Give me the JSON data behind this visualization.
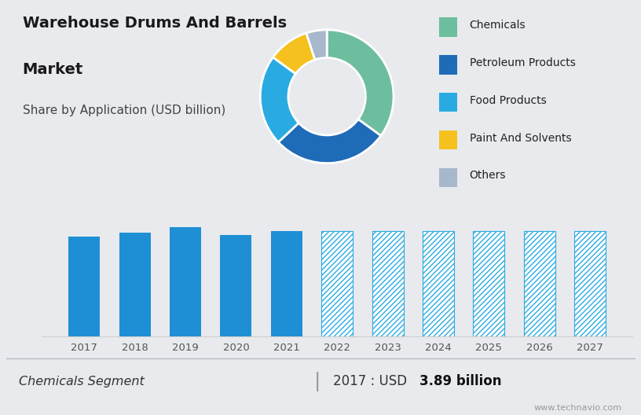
{
  "title_line1": "Warehouse Drums And Barrels",
  "title_line2": "Market",
  "subtitle": "Share by Application (USD billion)",
  "top_bg_color": "#c5d3e0",
  "bottom_bg_color": "#e8eaed",
  "pie_labels": [
    "Chemicals",
    "Petroleum Products",
    "Food Products",
    "Paint And Solvents",
    "Others"
  ],
  "pie_values": [
    35,
    28,
    22,
    10,
    5
  ],
  "pie_colors": [
    "#6dbe9e",
    "#1e6bb8",
    "#29abe2",
    "#f5c11e",
    "#a8b8cc"
  ],
  "bar_years": [
    2017,
    2018,
    2019,
    2020,
    2021,
    2022,
    2023,
    2024,
    2025,
    2026,
    2027
  ],
  "bar_values": [
    3.89,
    4.05,
    4.25,
    3.95,
    4.1,
    4.4,
    4.4,
    4.4,
    4.4,
    4.4,
    4.4
  ],
  "bar_solid_color": "#1e8fd5",
  "bar_hatch_color": "#29abe2",
  "footer_left": "Chemicals Segment",
  "footer_right_plain": "2017 : USD ",
  "footer_right_bold": "3.89 billion",
  "footer_divider": "|",
  "watermark": "www.technavio.com",
  "grid_color": "#d0d0d0",
  "axis_label_color": "#555555",
  "legend_fontsize": 10,
  "title_fontsize": 14,
  "subtitle_fontsize": 11
}
